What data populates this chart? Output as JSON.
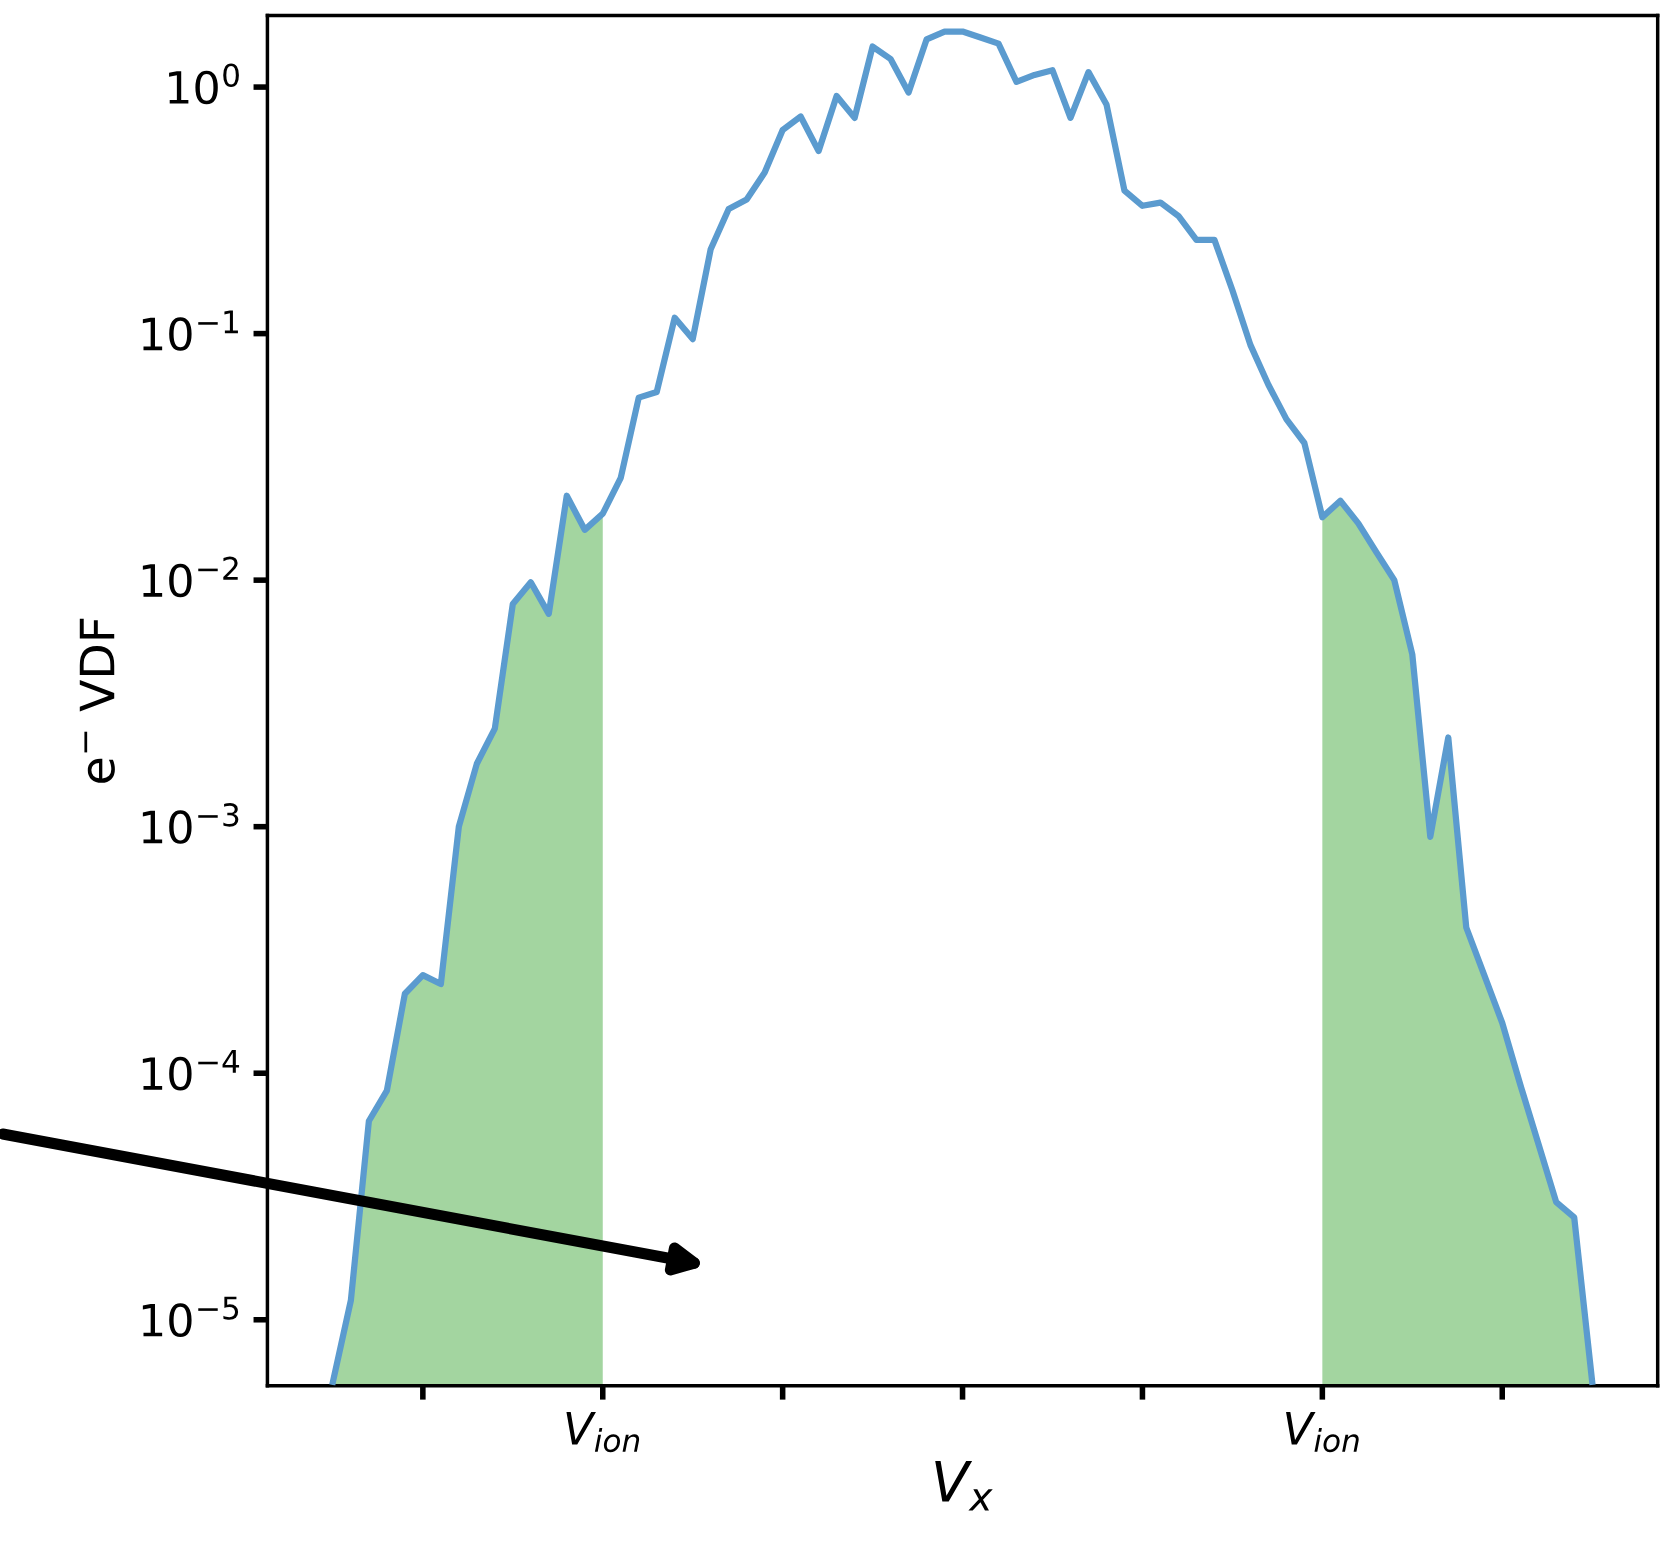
{
  "chart_data": {
    "type": "line",
    "ylabel": "e$^{−}$ VDF",
    "xlabel": "V$_{x}$",
    "log": "y",
    "ylim": [
      5.4e-06,
      1.95
    ],
    "categories": [
      null,
      null,
      null,
      null,
      null,
      null,
      null,
      null,
      null,
      null,
      null,
      null,
      null,
      null,
      null,
      "V$_{ion}$",
      null,
      null,
      null,
      null,
      null,
      null,
      null,
      null,
      null,
      null,
      null,
      null,
      null,
      null,
      null,
      null,
      null,
      null,
      null,
      null,
      null,
      null,
      null,
      null,
      null,
      null,
      null,
      null,
      null,
      null,
      null,
      null,
      null,
      null,
      null,
      null,
      null,
      null,
      null,
      "V$_{ion}$",
      null,
      null,
      null,
      null,
      null,
      null,
      null,
      null,
      null,
      null,
      null,
      null,
      null,
      null,
      null
    ],
    "yticks": [
      {
        "value": 1,
        "label": "10$^{0}$"
      },
      {
        "value": 0.1,
        "label": "10$^{−1}$"
      },
      {
        "value": 0.01,
        "label": "10$^{−2}$"
      },
      {
        "value": 0.001,
        "label": "10$^{−3}$"
      },
      {
        "value": 0.0001,
        "label": "10$^{−4}$"
      },
      {
        "value": 1e-05,
        "label": "10$^{−5}$"
      }
    ],
    "grid": false,
    "legend": false,
    "marker": "none",
    "line_style": "solid",
    "series": [
      {
        "type": "area",
        "color": "#a3d5a0",
        "values": [
          5.6e-06,
          1.2e-05,
          6.4e-05,
          8.5e-05,
          0.00021,
          0.00025,
          0.00023,
          0.001,
          0.0018,
          0.0025,
          0.008,
          0.0098,
          0.0073,
          0.022,
          0.016,
          0.0186,
          null,
          null,
          null,
          null,
          null,
          null,
          null,
          null,
          null,
          null,
          null,
          null,
          null,
          null,
          null,
          null,
          null,
          null,
          null,
          null,
          null,
          null,
          null,
          null,
          null,
          null,
          null,
          null,
          null,
          null,
          null,
          null,
          null,
          null,
          null,
          null,
          null,
          null,
          null,
          null,
          null,
          null,
          null,
          null,
          null,
          null,
          null,
          null,
          null,
          null,
          null,
          null,
          null,
          null,
          null
        ]
      },
      {
        "type": "area",
        "color": "#a3d5a0",
        "values": [
          null,
          null,
          null,
          null,
          null,
          null,
          null,
          null,
          null,
          null,
          null,
          null,
          null,
          null,
          null,
          null,
          null,
          null,
          null,
          null,
          null,
          null,
          null,
          null,
          null,
          null,
          null,
          null,
          null,
          null,
          null,
          null,
          null,
          null,
          null,
          null,
          null,
          null,
          null,
          null,
          null,
          null,
          null,
          null,
          null,
          null,
          null,
          null,
          null,
          null,
          null,
          null,
          null,
          null,
          null,
          0.018,
          0.021,
          0.017,
          0.013,
          0.01,
          0.005,
          0.00091,
          0.0023,
          0.00039,
          0.00025,
          0.00016,
          9e-05,
          5.2e-05,
          3e-05,
          2.6e-05,
          5.6e-06
        ]
      },
      {
        "color": "#5b9bcf",
        "values": [
          5.6e-06,
          1.2e-05,
          6.4e-05,
          8.5e-05,
          0.00021,
          0.00025,
          0.00023,
          0.001,
          0.0018,
          0.0025,
          0.008,
          0.0098,
          0.0073,
          0.022,
          0.016,
          0.0186,
          0.026,
          0.055,
          0.058,
          0.116,
          0.095,
          0.22,
          0.32,
          0.35,
          0.45,
          0.67,
          0.76,
          0.55,
          0.92,
          0.75,
          1.46,
          1.3,
          0.95,
          1.56,
          1.68,
          1.68,
          1.59,
          1.5,
          1.05,
          1.12,
          1.17,
          0.75,
          1.15,
          0.85,
          0.38,
          0.33,
          0.34,
          0.3,
          0.24,
          0.24,
          0.15,
          0.09,
          0.062,
          0.045,
          0.036,
          0.018,
          0.021,
          0.017,
          0.013,
          0.01,
          0.005,
          0.00091,
          0.0023,
          0.00039,
          0.00025,
          0.00016,
          9e-05,
          5.2e-05,
          3e-05,
          2.6e-05,
          5.6e-06
        ]
      }
    ]
  }
}
